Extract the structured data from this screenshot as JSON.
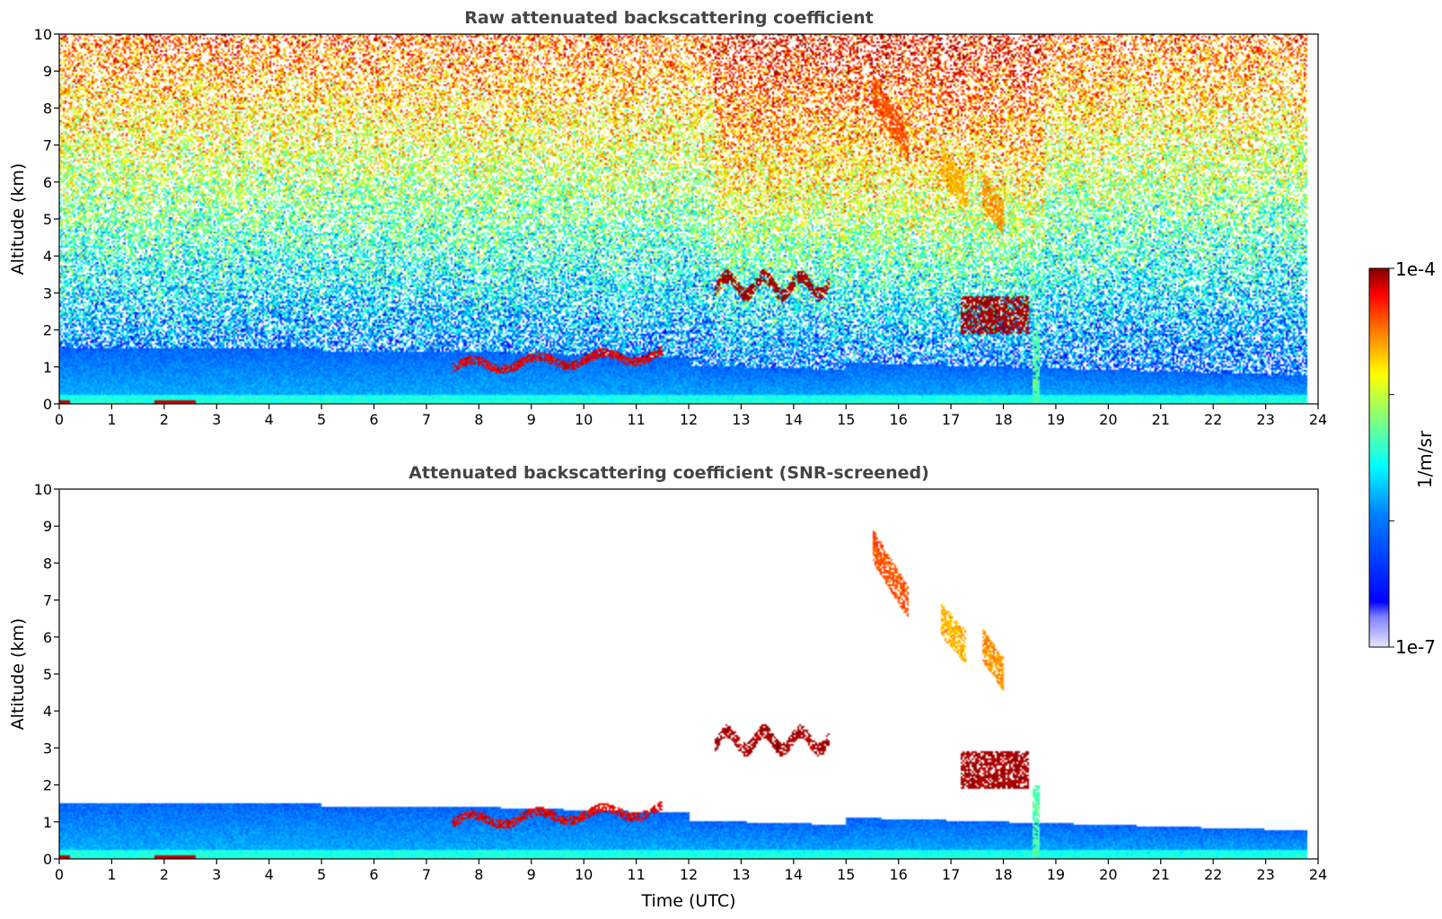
{
  "chart_data": [
    {
      "type": "heatmap",
      "title": "Raw attenuated backscattering coefficient",
      "xlabel": "",
      "ylabel": "Altitude (km)",
      "xlim": [
        0,
        24
      ],
      "ylim": [
        0,
        10
      ],
      "x_ticks": [
        "0",
        "1",
        "2",
        "3",
        "4",
        "5",
        "6",
        "7",
        "8",
        "9",
        "10",
        "11",
        "12",
        "13",
        "14",
        "15",
        "16",
        "17",
        "18",
        "19",
        "20",
        "21",
        "22",
        "23",
        "24"
      ],
      "y_ticks": [
        "0",
        "1",
        "2",
        "3",
        "4",
        "5",
        "6",
        "7",
        "8",
        "9",
        "10"
      ],
      "data_extent_x": [
        0,
        23.8
      ],
      "screened": false,
      "features": [
        {
          "kind": "boundary-layer",
          "x_range": [
            0,
            23.8
          ],
          "top_km": [
            1.4,
            0.5
          ],
          "log_value": -6.3
        },
        {
          "kind": "cloud",
          "x_range": [
            12.5,
            14.7
          ],
          "alt_km": [
            2.7,
            3.4
          ],
          "log_value": -4.1
        },
        {
          "kind": "cloud",
          "x_range": [
            15.5,
            16.2
          ],
          "alt_km": [
            6.5,
            8.5
          ],
          "log_value": -4.6
        },
        {
          "kind": "cloud",
          "x_range": [
            16.8,
            17.3
          ],
          "alt_km": [
            5.5,
            6.5
          ],
          "log_value": -4.9
        },
        {
          "kind": "cloud",
          "x_range": [
            17.6,
            18.0
          ],
          "alt_km": [
            4.8,
            5.8
          ],
          "log_value": -4.8
        },
        {
          "kind": "cloud",
          "x_range": [
            17.2,
            18.5
          ],
          "alt_km": [
            1.9,
            2.9
          ],
          "log_value": -4.1
        },
        {
          "kind": "precipitation-column",
          "x_range": [
            18.55,
            18.7
          ],
          "alt_km": [
            0,
            2.0
          ],
          "log_value": -5.6
        },
        {
          "kind": "low-cloud-layer",
          "x_range": [
            7.5,
            11.5
          ],
          "alt_km": [
            1.0,
            1.8
          ],
          "log_value": -4.3
        }
      ]
    },
    {
      "type": "heatmap",
      "title": "Attenuated backscattering coefficient (SNR-screened)",
      "xlabel": "Time (UTC)",
      "ylabel": "Altitude (km)",
      "xlim": [
        0,
        24
      ],
      "ylim": [
        0,
        10
      ],
      "x_ticks": [
        "0",
        "1",
        "2",
        "3",
        "4",
        "5",
        "6",
        "7",
        "8",
        "9",
        "10",
        "11",
        "12",
        "13",
        "14",
        "15",
        "16",
        "17",
        "18",
        "19",
        "20",
        "21",
        "22",
        "23",
        "24"
      ],
      "y_ticks": [
        "0",
        "1",
        "2",
        "3",
        "4",
        "5",
        "6",
        "7",
        "8",
        "9",
        "10"
      ],
      "data_extent_x": [
        0,
        23.8
      ],
      "screened": true
    }
  ],
  "colorbar": {
    "label": "1/m/sr",
    "min_label": "1e-7",
    "max_label": "1e-4",
    "min_value": 1e-07,
    "max_value": 0.0001,
    "colormap": "jet",
    "colors": [
      "#000080",
      "#0000ff",
      "#0080ff",
      "#00ffff",
      "#80ff80",
      "#ffff00",
      "#ff8000",
      "#ff0000",
      "#800000"
    ],
    "low_end_colors": [
      "#e6e6ff",
      "#b3b3ff",
      "#8080ff"
    ]
  }
}
